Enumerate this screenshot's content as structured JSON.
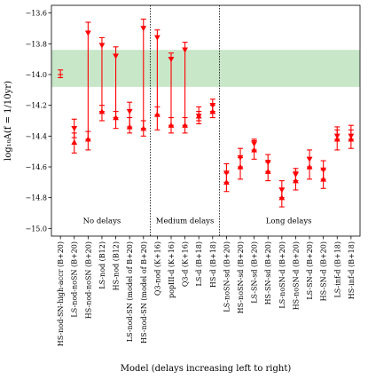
{
  "chart_data": {
    "type": "scatter",
    "title": "",
    "xlabel": "Model (delays increasing left to right)",
    "ylabel": "log₁₀A(f = 1/10yr)",
    "ylim": [
      -15.05,
      -13.55
    ],
    "yticks": [
      -15.0,
      -14.8,
      -14.6,
      -14.4,
      -14.2,
      -14.0,
      -13.8,
      -13.6
    ],
    "ytick_labels": [
      "−15.0",
      "−14.8",
      "−14.6",
      "−14.4",
      "−14.2",
      "−14.0",
      "−13.8",
      "−13.6"
    ],
    "grid": false,
    "observed_band": [
      -14.08,
      -13.84
    ],
    "band_color": "#c8e6c8",
    "marker_color": "#ff0000",
    "categories": [
      "HS-nod-SN-high-accr (B+20)",
      "LS-nod-noSN (B+20)",
      "HS-nod-noSN (B+20)",
      "LS-nod (B12)",
      "HS-nod (B12)",
      "LS-nod-SN (model of B+20)",
      "HS-nod-SN (model of B+20)",
      "Q3-nod (K+16)",
      "popIII-d (K+16)",
      "Q3-d (K+16)",
      "LS-d (B+18)",
      "HS-d (B+18)",
      "LS-noSN-sd (B+20)",
      "HS-noSN-sd (B+20)",
      "LS-SN-sd (B+20)",
      "HS-SN-sd (B+20)",
      "LS-noSN-d (B+20)",
      "HS-noSN-d (B+20)",
      "LS-SN-d (B+20)",
      "HS-SN-d (B+20)",
      "LS-inf-d (B+18)",
      "HS-inf-d (B+18)"
    ],
    "lower_points": [
      [
        -14.0,
        -13.97,
        -14.02
      ],
      [
        -14.44,
        -14.38,
        -14.51
      ],
      [
        -14.42,
        -14.37,
        -14.49
      ],
      [
        -14.24,
        -14.2,
        -14.3
      ],
      [
        -14.28,
        -14.24,
        -14.35
      ],
      [
        -14.34,
        -14.28,
        -14.38
      ],
      [
        -14.35,
        -14.3,
        -14.4
      ],
      [
        -14.26,
        -14.21,
        -14.36
      ],
      [
        -14.33,
        -14.28,
        -14.38
      ],
      [
        -14.33,
        -14.28,
        -14.38
      ],
      [
        -14.27,
        -14.24,
        -14.32
      ],
      [
        -14.24,
        -14.2,
        -14.28
      ],
      [
        -14.7,
        -14.64,
        -14.76
      ],
      [
        -14.6,
        -14.54,
        -14.68
      ],
      [
        -14.49,
        -14.43,
        -14.55
      ],
      [
        -14.63,
        -14.57,
        -14.69
      ],
      [
        -14.8,
        -14.74,
        -14.86
      ],
      [
        -14.69,
        -14.63,
        -14.75
      ],
      [
        -14.6,
        -14.54,
        -14.68
      ],
      [
        -14.68,
        -14.62,
        -14.74
      ],
      [
        -14.42,
        -14.36,
        -14.49
      ],
      [
        -14.42,
        -14.36,
        -14.48
      ]
    ],
    "upper_points": [
      null,
      [
        -14.35,
        -14.29,
        -14.41
      ],
      [
        -13.73,
        -13.66,
        -14.42
      ],
      [
        -13.81,
        -13.76,
        -14.24
      ],
      [
        -13.88,
        -13.82,
        -14.28
      ],
      [
        -14.24,
        -14.18,
        -14.34
      ],
      [
        -13.7,
        -13.64,
        -14.35
      ],
      [
        -13.76,
        -13.71,
        -14.26
      ],
      [
        -13.9,
        -13.86,
        -14.33
      ],
      [
        -13.84,
        -13.79,
        -14.33
      ],
      [
        -14.27,
        -14.21,
        -14.3
      ],
      [
        -14.2,
        -14.16,
        -14.24
      ],
      [
        -14.64,
        -14.58,
        -14.7
      ],
      [
        -14.54,
        -14.48,
        -14.6
      ],
      [
        -14.45,
        -14.42,
        -14.49
      ],
      [
        -14.57,
        -14.52,
        -14.63
      ],
      [
        -14.75,
        -14.69,
        -14.8
      ],
      [
        -14.65,
        -14.61,
        -14.69
      ],
      [
        -14.55,
        -14.49,
        -14.6
      ],
      [
        -14.62,
        -14.56,
        -14.68
      ],
      [
        -14.4,
        -14.34,
        -14.42
      ],
      [
        -14.4,
        -14.33,
        -14.42
      ]
    ],
    "regions": [
      {
        "label": "No delays",
        "start": 0,
        "end": 6
      },
      {
        "label": "Medium delays",
        "start": 7,
        "end": 11
      },
      {
        "label": "Long delays",
        "start": 12,
        "end": 21
      }
    ],
    "region_label_y": -14.95,
    "divider_after": [
      6.5,
      11.5
    ]
  }
}
